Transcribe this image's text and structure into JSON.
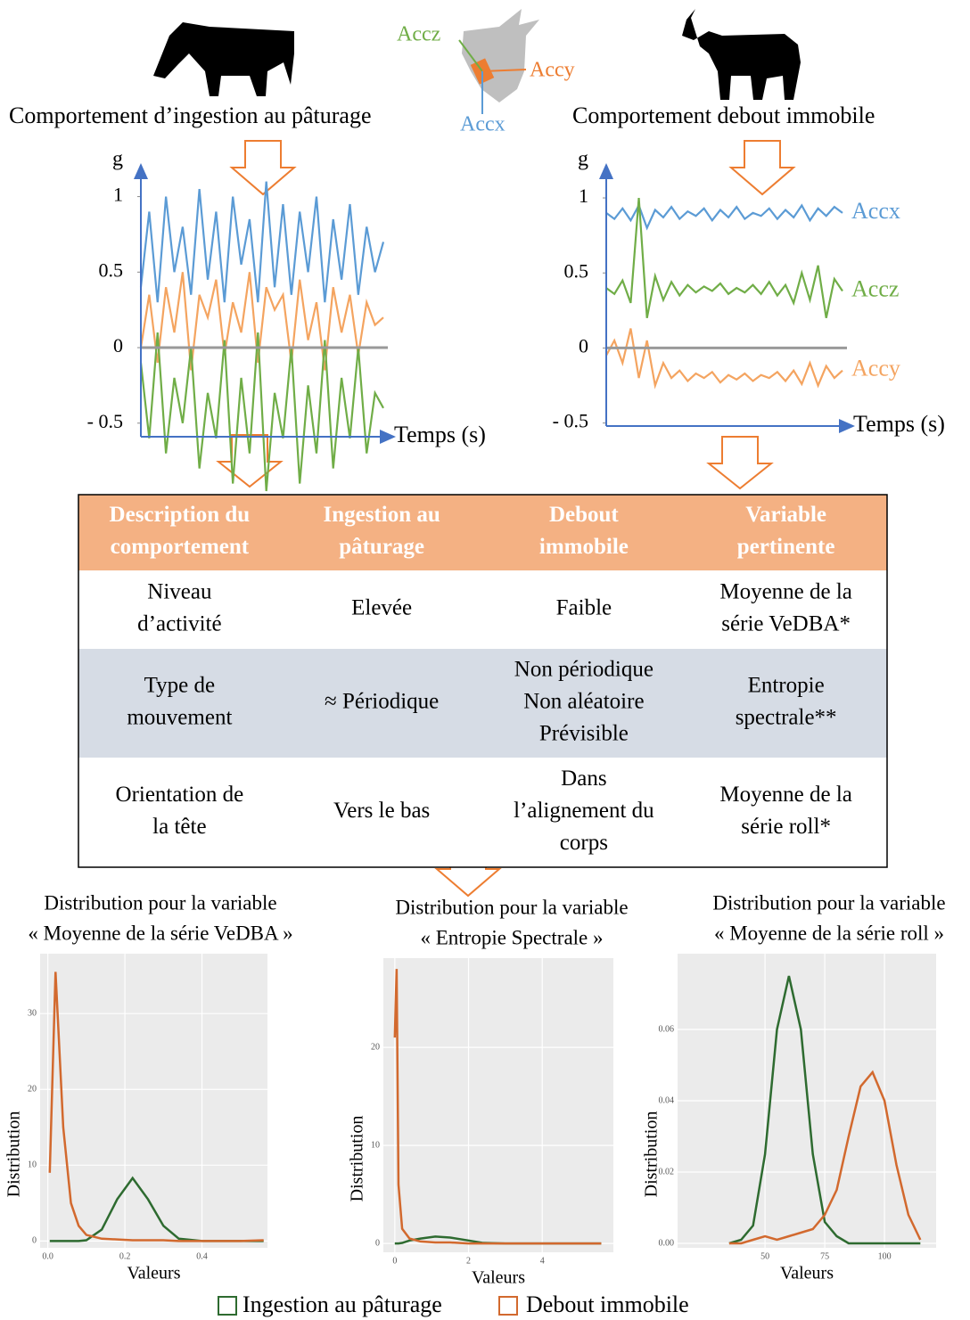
{
  "top": {
    "left_label": "Comportement d’ingestion au pâturage",
    "right_label": "Comportement debout immobile",
    "axes": {
      "accz": "Accz",
      "accy": "Accy",
      "accx": "Accx"
    }
  },
  "table": {
    "header": [
      [
        "Description du",
        "comportement"
      ],
      [
        "Ingestion au",
        "pâturage"
      ],
      [
        "Debout",
        "immobile"
      ],
      [
        "Variable",
        "pertinente"
      ]
    ],
    "rows": [
      [
        [
          "Niveau",
          "d’activité"
        ],
        [
          "Elevée"
        ],
        [
          "Faible"
        ],
        [
          "Moyenne de la",
          "série VeDBA*"
        ]
      ],
      [
        [
          "Type de",
          "mouvement"
        ],
        [
          "≈ Périodique"
        ],
        [
          "Non périodique",
          "Non aléatoire",
          "Prévisible"
        ],
        [
          "Entropie",
          "spectrale**"
        ]
      ],
      [
        [
          "Orientation de",
          "la tête"
        ],
        [
          "Vers le bas"
        ],
        [
          "Dans",
          "l’alignement du",
          "corps"
        ],
        [
          "Moyenne de la",
          "série roll*"
        ]
      ]
    ]
  },
  "chart_data": [
    {
      "type": "signal",
      "ylabel": "g",
      "xlabel": "Temps (s)",
      "ylim": [
        -0.59,
        1.21
      ],
      "yticks": [
        {
          "value": -0.5,
          "label": "- 0.5"
        },
        0,
        0.5,
        1
      ],
      "series": [
        {
          "color": "#5b9bd5",
          "values": [
            0.4,
            0.9,
            0.3,
            1.0,
            0.5,
            0.8,
            0.35,
            1.05,
            0.45,
            0.9,
            0.3,
            1.0,
            0.55,
            0.85,
            0.3,
            1.1,
            0.4,
            0.95,
            0.35,
            0.9,
            0.5,
            1.0,
            0.3,
            0.85,
            0.45,
            0.95,
            0.35,
            0.8,
            0.5,
            0.7
          ]
        },
        {
          "color": "#f4a460",
          "values": [
            0.0,
            0.35,
            -0.1,
            0.4,
            0.1,
            0.5,
            -0.15,
            0.35,
            0.2,
            0.45,
            -0.05,
            0.3,
            0.1,
            0.5,
            -0.1,
            0.4,
            0.25,
            0.35,
            -0.1,
            0.45,
            0.05,
            0.3,
            -0.15,
            0.4,
            0.1,
            0.35,
            -0.05,
            0.3,
            0.15,
            0.2
          ]
        },
        {
          "color": "#70ad47",
          "values": [
            -0.1,
            -0.6,
            0.1,
            -0.7,
            -0.2,
            -0.5,
            0.0,
            -0.8,
            -0.3,
            -0.6,
            0.05,
            -0.9,
            -0.2,
            -0.7,
            0.1,
            -0.95,
            -0.3,
            -0.6,
            0.0,
            -0.9,
            -0.25,
            -0.7,
            0.05,
            -0.8,
            -0.2,
            -0.6,
            0.0,
            -0.7,
            -0.3,
            -0.4
          ]
        }
      ]
    },
    {
      "type": "signal",
      "ylabel": "g",
      "xlabel": "Temps (s)",
      "ylim": [
        -0.52,
        1.22
      ],
      "yticks": [
        {
          "value": -0.5,
          "label": "- 0.5"
        },
        0,
        0.5,
        1
      ],
      "series": [
        {
          "name": "Accx",
          "color": "#5b9bd5",
          "values": [
            0.9,
            0.86,
            0.93,
            0.85,
            0.95,
            0.8,
            0.92,
            0.87,
            0.94,
            0.86,
            0.91,
            0.88,
            0.93,
            0.85,
            0.92,
            0.87,
            0.94,
            0.86,
            0.9,
            0.88,
            0.93,
            0.86,
            0.92,
            0.87,
            0.95,
            0.85,
            0.93,
            0.88,
            0.94,
            0.9
          ]
        },
        {
          "name": "Accz",
          "color": "#70ad47",
          "values": [
            0.4,
            0.36,
            0.45,
            0.3,
            1.0,
            0.2,
            0.48,
            0.32,
            0.44,
            0.35,
            0.42,
            0.37,
            0.41,
            0.38,
            0.43,
            0.36,
            0.4,
            0.37,
            0.42,
            0.36,
            0.44,
            0.35,
            0.42,
            0.3,
            0.5,
            0.32,
            0.55,
            0.2,
            0.46,
            0.38
          ]
        },
        {
          "name": "Accy",
          "color": "#f4a460",
          "values": [
            -0.05,
            0.05,
            -0.1,
            0.13,
            -0.2,
            0.05,
            -0.25,
            -0.1,
            -0.2,
            -0.15,
            -0.22,
            -0.17,
            -0.2,
            -0.16,
            -0.23,
            -0.18,
            -0.21,
            -0.17,
            -0.22,
            -0.18,
            -0.2,
            -0.16,
            -0.22,
            -0.15,
            -0.24,
            -0.1,
            -0.25,
            -0.12,
            -0.2,
            -0.15
          ]
        }
      ]
    },
    {
      "type": "density",
      "title": [
        "Distribution pour la variable",
        "« Moyenne de la série VeDBA »"
      ],
      "xlabel": "Valeurs",
      "ylabel": "Distribution",
      "xlim": [
        -0.02,
        0.57
      ],
      "ylim": [
        -0.9,
        37.9
      ],
      "xticks": [
        {
          "value": 0,
          "label": "0.0"
        },
        {
          "value": 0.2,
          "label": "0.2"
        },
        {
          "value": 0.4,
          "label": "0.4"
        }
      ],
      "yticks": [
        0,
        10,
        20,
        30
      ],
      "x": [
        0.005,
        0.02,
        0.04,
        0.06,
        0.08,
        0.1,
        0.14,
        0.18,
        0.22,
        0.26,
        0.3,
        0.34,
        0.4,
        0.5,
        0.56
      ],
      "series": [
        {
          "name": "Ingestion au pâturage",
          "color": "#2e6b30",
          "values": [
            0,
            0,
            0,
            0,
            0,
            0.1,
            1.5,
            5.5,
            8.3,
            5.5,
            2,
            0.3,
            0,
            0,
            0
          ]
        },
        {
          "name": "Debout immobile",
          "color": "#d2692e",
          "values": [
            9,
            35.5,
            15,
            5,
            2,
            0.8,
            0.3,
            0.2,
            0.1,
            0.1,
            0.1,
            0,
            0,
            0,
            0.1
          ]
        }
      ]
    },
    {
      "type": "density",
      "title": [
        "Distribution pour la variable",
        "« Entropie Spectrale »"
      ],
      "xlabel": "Valeurs",
      "ylabel": "Distribution",
      "xlim": [
        -0.31,
        5.93
      ],
      "ylim": [
        -0.9,
        29.1
      ],
      "xticks": [
        0,
        2,
        4
      ],
      "yticks": [
        0,
        10,
        20
      ],
      "x": [
        0,
        0.05,
        0.1,
        0.2,
        0.4,
        0.7,
        1.1,
        1.5,
        2,
        2.4,
        3,
        4,
        5,
        5.6
      ],
      "series": [
        {
          "color": "#2e6b30",
          "values": [
            0,
            0,
            0,
            0.05,
            0.3,
            0.5,
            0.7,
            0.6,
            0.3,
            0.05,
            0,
            0,
            0,
            0
          ]
        },
        {
          "color": "#d2692e",
          "values": [
            21,
            28,
            6,
            1.5,
            0.5,
            0.2,
            0.1,
            0.1,
            0,
            0,
            0,
            0,
            0,
            0
          ]
        }
      ]
    },
    {
      "type": "density",
      "title": [
        "Distribution pour la variable",
        "« Moyenne de la série roll »"
      ],
      "xlabel": "Valeurs",
      "ylabel": "Distribution",
      "xlim": [
        13.4,
        121.6
      ],
      "ylim": [
        -0.00125,
        0.08125
      ],
      "xticks": [
        50,
        75,
        100
      ],
      "yticks": [
        {
          "value": 0,
          "label": "0.00"
        },
        {
          "value": 0.02,
          "label": "0.02"
        },
        {
          "value": 0.04,
          "label": "0.04"
        },
        {
          "value": 0.06,
          "label": "0.06"
        }
      ],
      "x": [
        35,
        40,
        45,
        50,
        55,
        60,
        65,
        70,
        75,
        80,
        85,
        90,
        95,
        100,
        105,
        110,
        115
      ],
      "series": [
        {
          "color": "#2e6b30",
          "values": [
            0,
            0.001,
            0.005,
            0.025,
            0.06,
            0.075,
            0.06,
            0.025,
            0.006,
            0.002,
            0,
            0,
            0,
            0,
            0,
            0,
            0
          ]
        },
        {
          "color": "#d2692e",
          "values": [
            0,
            0,
            0.001,
            0.002,
            0.001,
            0.002,
            0.003,
            0.004,
            0.008,
            0.015,
            0.03,
            0.044,
            0.048,
            0.04,
            0.022,
            0.008,
            0.001
          ]
        }
      ]
    }
  ]
}
